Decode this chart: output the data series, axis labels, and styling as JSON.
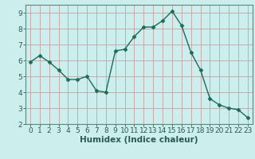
{
  "x": [
    0,
    1,
    2,
    3,
    4,
    5,
    6,
    7,
    8,
    9,
    10,
    11,
    12,
    13,
    14,
    15,
    16,
    17,
    18,
    19,
    20,
    21,
    22,
    23
  ],
  "y": [
    5.9,
    6.3,
    5.9,
    5.4,
    4.8,
    4.8,
    5.0,
    4.1,
    4.0,
    6.6,
    6.7,
    7.5,
    8.1,
    8.1,
    8.5,
    9.1,
    8.2,
    6.5,
    5.4,
    3.6,
    3.2,
    3.0,
    2.9,
    2.4
  ],
  "line_color": "#1a6b5a",
  "marker": "D",
  "marker_size": 2.5,
  "bg_color": "#cceeed",
  "grid_color": "#c8a0a0",
  "xlabel": "Humidex (Indice chaleur)",
  "xlim": [
    -0.5,
    23.5
  ],
  "ylim": [
    2,
    9.5
  ],
  "yticks": [
    2,
    3,
    4,
    5,
    6,
    7,
    8,
    9
  ],
  "xticks": [
    0,
    1,
    2,
    3,
    4,
    5,
    6,
    7,
    8,
    9,
    10,
    11,
    12,
    13,
    14,
    15,
    16,
    17,
    18,
    19,
    20,
    21,
    22,
    23
  ],
  "tick_fontsize": 6.5,
  "label_fontsize": 7.5,
  "tick_color": "#2a5a50",
  "spine_color": "#5a8a80"
}
